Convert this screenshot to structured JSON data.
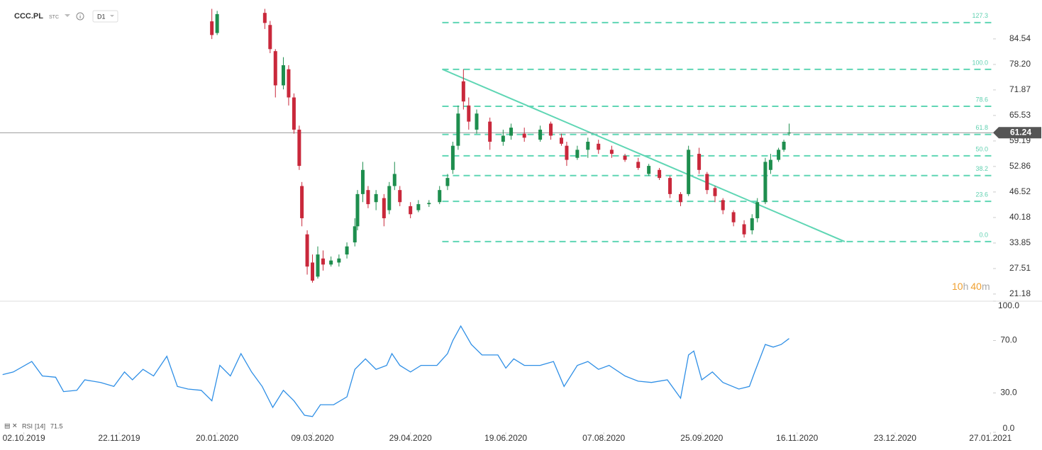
{
  "header": {
    "symbol": "CCC.PL",
    "market": "STC",
    "interval": "D1"
  },
  "chart_data": {
    "type": "candlestick",
    "x": [
      80,
      82,
      100,
      102,
      104,
      107,
      109,
      111,
      113,
      114,
      116,
      118,
      120,
      122,
      125,
      128,
      131,
      134,
      135,
      137,
      139,
      142,
      145,
      147,
      149,
      151,
      155,
      158,
      162,
      166,
      169,
      171,
      173,
      175,
      177,
      180,
      185,
      190,
      193,
      198,
      204,
      208,
      212,
      214,
      218,
      222,
      226,
      231,
      236,
      241,
      245,
      249,
      253,
      257,
      260,
      264,
      267,
      270,
      273,
      277,
      281,
      284,
      286,
      289,
      291,
      294,
      296,
      298
    ],
    "open": [
      88.9,
      86,
      91,
      88,
      81.5,
      73,
      77,
      70,
      62,
      48,
      36,
      29,
      25.5,
      30,
      28.5,
      29,
      31,
      34,
      38,
      46,
      47,
      44,
      45,
      42,
      48,
      47,
      43,
      42,
      43.5,
      44,
      48,
      52,
      58,
      74,
      68,
      62,
      64,
      59,
      60.5,
      61,
      59.5,
      63.5,
      60,
      58,
      55,
      57,
      58.5,
      57,
      55.5,
      54,
      51,
      52,
      50,
      46,
      46,
      56,
      51,
      47.5,
      44.5,
      41.5,
      38.5,
      37,
      40,
      44,
      52,
      54.5,
      57,
      61.24
    ],
    "high": [
      92,
      91.5,
      92,
      89,
      82,
      80,
      78,
      71,
      63,
      49,
      37,
      31,
      33,
      32,
      30.5,
      31,
      34,
      40,
      47,
      54,
      48,
      47,
      46,
      49,
      54,
      48,
      44,
      44.5,
      44.5,
      48,
      51,
      59,
      68,
      77,
      70,
      67,
      65,
      62,
      63.5,
      62.5,
      63,
      64,
      61,
      59,
      58,
      60,
      59.5,
      58,
      56,
      55,
      53.5,
      52.5,
      50.5,
      46.5,
      58,
      57.5,
      51.5,
      48,
      45,
      42,
      39.5,
      41,
      45,
      55,
      56,
      57.5,
      59.5,
      63.5
    ],
    "low": [
      84.5,
      85.5,
      87,
      81,
      70,
      72,
      68,
      61,
      52,
      38,
      26,
      24,
      25,
      27,
      28,
      28,
      30,
      33,
      37,
      44,
      42.5,
      42,
      38,
      41,
      47,
      43,
      40,
      41.5,
      42.8,
      43.5,
      47,
      51,
      57,
      67,
      62,
      61,
      57,
      58,
      59.5,
      59,
      59,
      59.5,
      58,
      53,
      54.5,
      55,
      56,
      55,
      54,
      52,
      50.5,
      49.5,
      45,
      43,
      45.5,
      51,
      46,
      44,
      41,
      38,
      35.2,
      36,
      39,
      43.5,
      51,
      54,
      56.5,
      60.5
    ],
    "close": [
      85.5,
      90.7,
      88.5,
      82,
      73,
      78,
      70,
      62,
      53,
      40,
      28,
      24.5,
      31,
      28.5,
      29.5,
      30,
      33,
      38,
      46,
      52,
      43.5,
      46,
      40,
      48,
      51,
      44,
      41,
      43.5,
      43.8,
      47,
      50,
      58,
      66,
      69,
      64,
      66,
      59,
      60.5,
      62.5,
      60,
      62,
      60.5,
      58.5,
      54.5,
      57,
      59,
      57,
      56,
      54.5,
      52.5,
      53,
      50,
      46,
      44,
      57,
      52,
      47,
      45.5,
      42,
      39,
      36,
      40,
      44,
      54,
      54.5,
      57,
      59,
      61.24
    ],
    "up_color": "#1e8e4e",
    "down_color": "#c9283b",
    "last_price": 61.24,
    "xlim": [
      0,
      375
    ],
    "xticks": [
      {
        "value": 9,
        "label": "02.10.2019"
      },
      {
        "value": 45,
        "label": "22.11.2019"
      },
      {
        "value": 82,
        "label": "20.01.2020"
      },
      {
        "value": 118,
        "label": "09.03.2020"
      },
      {
        "value": 155,
        "label": "29.04.2020"
      },
      {
        "value": 191,
        "label": "19.06.2020"
      },
      {
        "value": 228,
        "label": "07.08.2020"
      },
      {
        "value": 265,
        "label": "25.09.2020"
      },
      {
        "value": 301,
        "label": "16.11.2020"
      },
      {
        "value": 338,
        "label": "23.12.2020"
      },
      {
        "value": 374,
        "label": "27.01.2021"
      }
    ],
    "ylim": [
      19.4,
      94.2
    ],
    "yticks": [
      84.54,
      {
        "value": 78.2,
        "label": "78.20"
      },
      71.87,
      65.53,
      59.19,
      52.86,
      46.52,
      40.18,
      33.85,
      27.51,
      21.18
    ],
    "fib_levels": [
      {
        "label": "127.3",
        "value": 88.6
      },
      {
        "label": "100.0",
        "value": 76.97
      },
      {
        "label": "78.6",
        "value": 67.8
      },
      {
        "label": "61.8",
        "value": 60.8
      },
      {
        "label": "50.0",
        "value": 55.5
      },
      {
        "label": "38.2",
        "value": 50.6
      },
      {
        "label": "23.6",
        "value": 44.2
      },
      {
        "label": "0.0",
        "value": 34.2
      }
    ],
    "fib_x": [
      167,
      375
    ],
    "fib_color": "#5fd6b4",
    "trendline": {
      "x": [
        167,
        319
      ],
      "y": [
        77,
        34.2
      ]
    },
    "countdown": {
      "hours": "10",
      "h": "h",
      "minutes": "40",
      "m": "m"
    },
    "rsi": {
      "name": "RSI",
      "params": "[14]",
      "current": 71.5,
      "color": "#2f8fe6",
      "x": [
        1,
        5,
        12,
        16,
        21,
        24,
        29,
        32,
        38,
        43,
        47,
        50,
        54,
        58,
        63,
        67,
        71,
        76,
        80,
        83,
        87,
        91,
        95,
        99,
        103,
        107,
        111,
        115,
        118,
        121,
        126,
        131,
        134,
        138,
        142,
        146,
        148,
        151,
        155,
        159,
        165,
        169,
        171,
        174,
        178,
        182,
        188,
        191,
        194,
        198,
        204,
        209,
        213,
        218,
        222,
        226,
        230,
        236,
        241,
        246,
        252,
        257,
        260,
        262,
        265,
        269,
        273,
        279,
        283,
        285,
        289,
        292,
        295,
        298
      ],
      "values": [
        44,
        46,
        54,
        43,
        42,
        31,
        32,
        40,
        38,
        35,
        46,
        40,
        48,
        43,
        58,
        35,
        33,
        32,
        24,
        51,
        43,
        60,
        46,
        35,
        19,
        32,
        24,
        13,
        12,
        21,
        21,
        27,
        48,
        56,
        48,
        51,
        60,
        51,
        46,
        51,
        51,
        60,
        70,
        81,
        67,
        59,
        59,
        49,
        56,
        51,
        51,
        54,
        35,
        51,
        54,
        48,
        51,
        43,
        39,
        38,
        40,
        26,
        59,
        62,
        40,
        46,
        38,
        33,
        35,
        46,
        67,
        65,
        67,
        71.5
      ],
      "ylim": [
        0,
        100
      ],
      "yticks": [
        {
          "value": 100,
          "label": "100.0"
        },
        {
          "value": 70,
          "label": "70.0"
        },
        {
          "value": 30,
          "label": "30.0"
        },
        {
          "value": 0,
          "label": "0.0"
        }
      ]
    }
  }
}
